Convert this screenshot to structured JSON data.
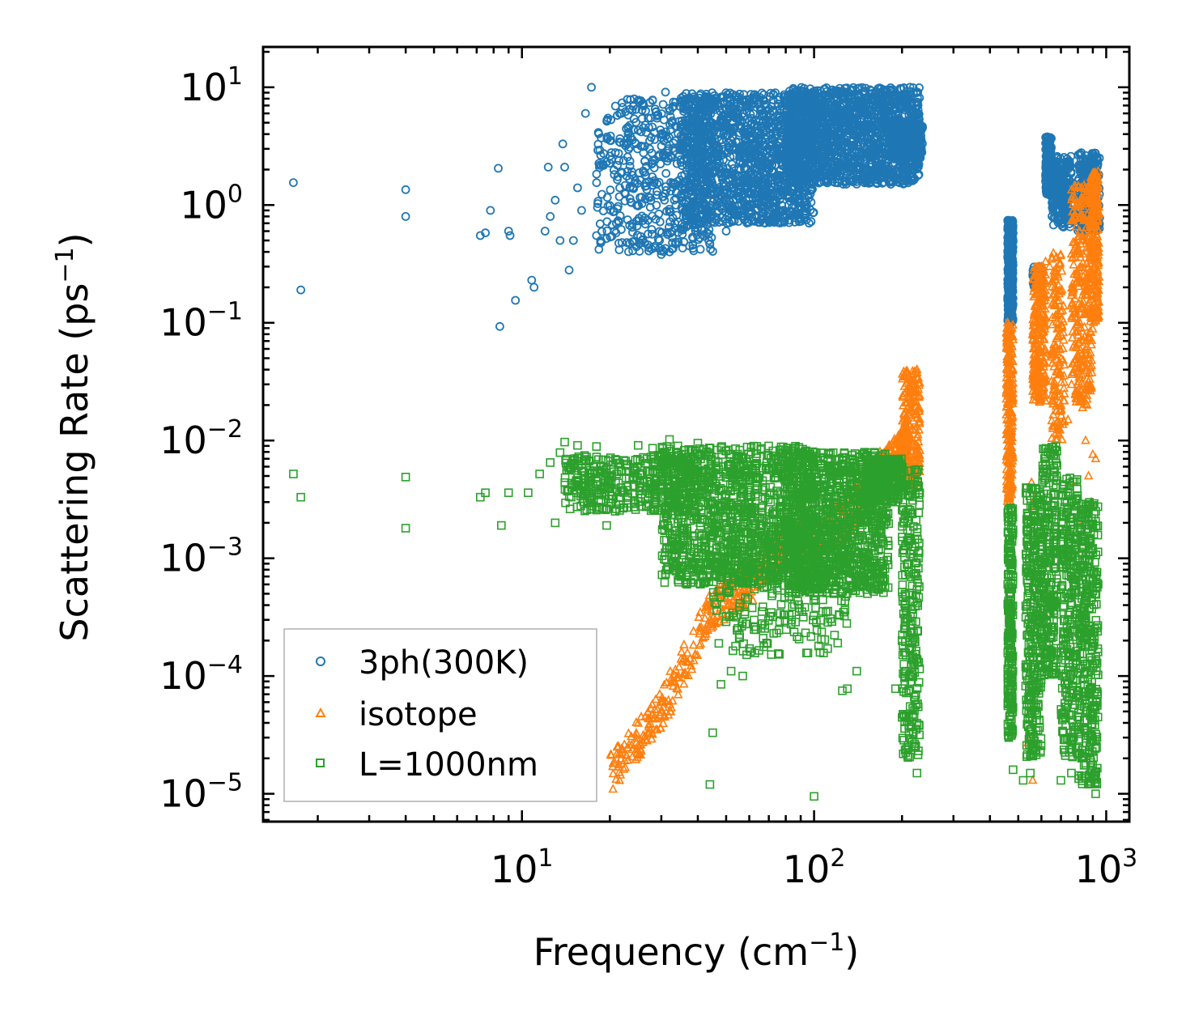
{
  "chart_data": {
    "type": "scatter",
    "xlabel": "Frequency (cm",
    "xlabel_sup": "−1",
    "xlabel_end": ")",
    "ylabel": "Scattering Rate (ps",
    "ylabel_sup": "−1",
    "ylabel_end": ")",
    "xscale": "log",
    "yscale": "log",
    "xlim": [
      1.3,
      1200
    ],
    "ylim": [
      5.8e-06,
      22
    ],
    "x_ticks": [
      {
        "base": "10",
        "exp": "1",
        "value": 10
      },
      {
        "base": "10",
        "exp": "2",
        "value": 100
      },
      {
        "base": "10",
        "exp": "3",
        "value": 1000
      }
    ],
    "y_ticks": [
      {
        "base": "10",
        "exp": "1",
        "value": 10
      },
      {
        "base": "10",
        "exp": "0",
        "value": 1
      },
      {
        "base": "10",
        "exp": "−1",
        "value": 0.1
      },
      {
        "base": "10",
        "exp": "−2",
        "value": 0.01
      },
      {
        "base": "10",
        "exp": "−3",
        "value": 0.001
      },
      {
        "base": "10",
        "exp": "−4",
        "value": 0.0001
      },
      {
        "base": "10",
        "exp": "−5",
        "value": 1e-05
      }
    ],
    "legend_position": "bottom-left",
    "series": [
      {
        "name": "3ph(300K)",
        "marker": "circle",
        "color": "#1f77b4",
        "points": [
          [
            1.65,
            1.55
          ],
          [
            1.75,
            0.19
          ],
          [
            4.0,
            1.35
          ],
          [
            4.0,
            0.8
          ],
          [
            7.2,
            0.55
          ],
          [
            7.5,
            0.58
          ],
          [
            7.8,
            0.9
          ],
          [
            8.3,
            2.05
          ],
          [
            8.4,
            0.093
          ],
          [
            9.0,
            0.6
          ],
          [
            9.1,
            0.55
          ],
          [
            9.5,
            0.155
          ],
          [
            10.8,
            0.23
          ],
          [
            11.0,
            0.2
          ],
          [
            12.0,
            0.6
          ],
          [
            12.3,
            2.1
          ],
          [
            12.5,
            0.8
          ],
          [
            13.0,
            1.1
          ],
          [
            13.5,
            0.5
          ],
          [
            13.8,
            3.3
          ],
          [
            14.0,
            2.1
          ],
          [
            14.5,
            0.28
          ],
          [
            15.0,
            0.5
          ],
          [
            15.5,
            1.4
          ],
          [
            16.0,
            0.9
          ],
          [
            16.5,
            6.0
          ],
          [
            17.3,
            10.0
          ],
          [
            18.0,
            0.55
          ],
          [
            19.5,
            0.52
          ],
          [
            21.0,
            0.58
          ],
          [
            22.0,
            0.48
          ],
          [
            26.0,
            7.3
          ],
          [
            28.0,
            7.8
          ],
          [
            30.0,
            0.38
          ],
          [
            31.0,
            9.1
          ],
          [
            32.0,
            0.4
          ],
          [
            33.0,
            7.5
          ],
          [
            35.0,
            2.3
          ],
          [
            43.0,
            0.58
          ],
          [
            46.0,
            0.75
          ],
          [
            50.0,
            0.6
          ]
        ],
        "clusters": [
          {
            "x": [
              18,
              45
            ],
            "y": [
              0.4,
              8.0
            ],
            "n": 500
          },
          {
            "x": [
              35,
              100
            ],
            "y": [
              0.7,
              9.0
            ],
            "n": 1400
          },
          {
            "x": [
              80,
              230
            ],
            "y": [
              1.5,
              10.0
            ],
            "n": 1500
          },
          {
            "x": [
              180,
              235
            ],
            "y": [
              2.5,
              5.0
            ],
            "n": 350
          },
          {
            "x": [
              460,
              480
            ],
            "y": [
              0.1,
              0.75
            ],
            "n": 320
          },
          {
            "x": [
              560,
              600
            ],
            "y": [
              0.2,
              0.3
            ],
            "n": 90
          },
          {
            "x": [
              620,
              650
            ],
            "y": [
              1.2,
              3.8
            ],
            "n": 160
          },
          {
            "x": [
              650,
              760
            ],
            "y": [
              0.65,
              2.6
            ],
            "n": 220
          },
          {
            "x": [
              800,
              950
            ],
            "y": [
              0.6,
              2.8
            ],
            "n": 240
          }
        ]
      },
      {
        "name": "isotope",
        "marker": "triangle",
        "color": "#ff7f0e",
        "points": [
          [
            225,
            0.04
          ],
          [
            460,
            0.1
          ],
          [
            465,
            0.09
          ],
          [
            555,
            0.0044
          ],
          [
            560,
            0.0028
          ],
          [
            570,
            0.0032
          ],
          [
            600,
            0.3
          ],
          [
            620,
            0.33
          ],
          [
            640,
            0.3
          ],
          [
            680,
            0.04
          ],
          [
            700,
            0.02
          ],
          [
            740,
            0.015
          ],
          [
            760,
            0.0045
          ],
          [
            800,
            0.002
          ],
          [
            830,
            0.019
          ],
          [
            850,
            0.01
          ],
          [
            870,
            0.005
          ],
          [
            890,
            0.003
          ],
          [
            900,
            0.0076
          ],
          [
            920,
            0.007
          ],
          [
            560,
            1.3e-05
          ],
          [
            540,
            2.7e-05
          ]
        ],
        "trend": [
          [
            20,
            1e-05
          ],
          [
            30,
            3.5e-05
          ],
          [
            45,
            0.00025
          ],
          [
            60,
            0.0004
          ],
          [
            80,
            0.00085
          ],
          [
            100,
            0.00095
          ],
          [
            130,
            0.0015
          ],
          [
            160,
            0.0032
          ],
          [
            190,
            0.0048
          ],
          [
            210,
            0.0065
          ]
        ],
        "clusters": [
          {
            "x": [
              200,
              230
            ],
            "y": [
              0.004,
              0.04
            ],
            "n": 220
          },
          {
            "x": [
              455,
              480
            ],
            "y": [
              0.003,
              0.1
            ],
            "n": 250
          },
          {
            "x": [
              560,
              620
            ],
            "y": [
              0.02,
              0.3
            ],
            "n": 260
          },
          {
            "x": [
              650,
              720
            ],
            "y": [
              0.01,
              0.4
            ],
            "n": 150
          },
          {
            "x": [
              760,
              900
            ],
            "y": [
              0.02,
              1.5
            ],
            "n": 300
          },
          {
            "x": [
              880,
              945
            ],
            "y": [
              0.1,
              2.0
            ],
            "n": 220
          }
        ]
      },
      {
        "name": "L=1000nm",
        "marker": "square",
        "color": "#2ca02c",
        "points": [
          [
            1.65,
            0.0052
          ],
          [
            1.75,
            0.0033
          ],
          [
            4.0,
            0.0049
          ],
          [
            4.0,
            0.0018
          ],
          [
            7.2,
            0.0033
          ],
          [
            7.5,
            0.0036
          ],
          [
            8.5,
            0.0019
          ],
          [
            9.0,
            0.0036
          ],
          [
            10.5,
            0.0036
          ],
          [
            11.5,
            0.0052
          ],
          [
            12.5,
            0.0065
          ],
          [
            13.0,
            0.002
          ],
          [
            13.5,
            0.0079
          ],
          [
            14.0,
            0.0097
          ],
          [
            15.0,
            0.0063
          ],
          [
            15.5,
            0.0091
          ],
          [
            16.0,
            0.0055
          ],
          [
            17.0,
            0.0052
          ],
          [
            18.0,
            0.0089
          ],
          [
            19.5,
            0.0019
          ],
          [
            22.0,
            0.0055
          ],
          [
            25.0,
            0.0091
          ],
          [
            28.0,
            0.0086
          ],
          [
            30.0,
            0.0068
          ],
          [
            32.0,
            0.0102
          ],
          [
            40.0,
            0.0095
          ],
          [
            44.0,
            1.2e-05
          ],
          [
            45.0,
            3.3e-05
          ],
          [
            48.0,
            8.5e-05
          ],
          [
            52.0,
            0.00011
          ],
          [
            57.0,
            0.0001
          ],
          [
            100.0,
            9.5e-06
          ],
          [
            125.0,
            7.5e-05
          ],
          [
            130.0,
            7.8e-05
          ],
          [
            140.0,
            0.00011
          ],
          [
            190.0,
            7.8e-05
          ],
          [
            225.0,
            1.5e-05
          ],
          [
            480.0,
            1.6e-05
          ],
          [
            470.0,
            7.5e-05
          ],
          [
            520.0,
            1.3e-05
          ],
          [
            550.0,
            1.5e-05
          ],
          [
            700.0,
            1.3e-05
          ],
          [
            760.0,
            1.5e-05
          ],
          [
            920,
            1e-05
          ]
        ],
        "clusters": [
          {
            "x": [
              14,
              40
            ],
            "y": [
              0.0025,
              0.0075
            ],
            "n": 380
          },
          {
            "x": [
              30,
              100
            ],
            "y": [
              0.0006,
              0.009
            ],
            "n": 1200
          },
          {
            "x": [
              80,
              180
            ],
            "y": [
              0.0005,
              0.008
            ],
            "n": 1100
          },
          {
            "x": [
              45,
              130
            ],
            "y": [
              0.00015,
              0.0015
            ],
            "n": 260
          },
          {
            "x": [
              150,
              200
            ],
            "y": [
              0.003,
              0.007
            ],
            "n": 250
          },
          {
            "x": [
              200,
              230
            ],
            "y": [
              2e-05,
              0.006
            ],
            "n": 250
          },
          {
            "x": [
              460,
              480
            ],
            "y": [
              3e-05,
              0.0028
            ],
            "n": 220
          },
          {
            "x": [
              530,
              600
            ],
            "y": [
              2e-05,
              0.004
            ],
            "n": 320
          },
          {
            "x": [
              600,
              680
            ],
            "y": [
              0.0001,
              0.009
            ],
            "n": 260
          },
          {
            "x": [
              700,
              800
            ],
            "y": [
              2e-05,
              0.005
            ],
            "n": 260
          },
          {
            "x": [
              800,
              940
            ],
            "y": [
              1.2e-05,
              0.003
            ],
            "n": 360
          }
        ]
      }
    ]
  }
}
